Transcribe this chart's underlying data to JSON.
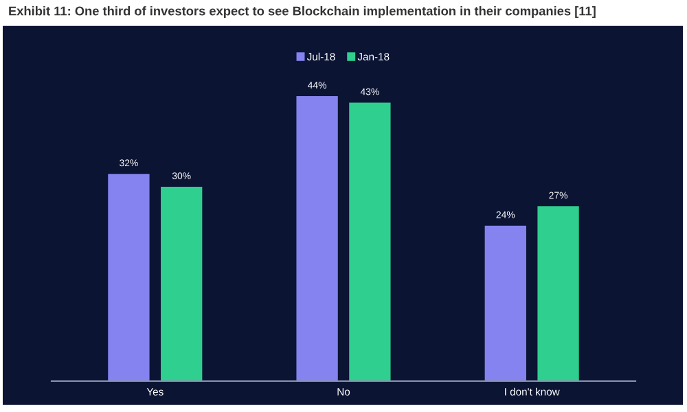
{
  "chart_data": {
    "type": "bar",
    "title": "Exhibit 11: One third of investors expect to see Blockchain implementation in their companies [11]",
    "categories": [
      "Yes",
      "No",
      "I don't know"
    ],
    "series": [
      {
        "name": "Jul-18",
        "color": "#8583f0",
        "values": [
          32,
          44,
          24
        ],
        "value_labels": [
          "32%",
          "44%",
          "24%"
        ]
      },
      {
        "name": "Jan-18",
        "color": "#2fcf8f",
        "values": [
          30,
          43,
          27
        ],
        "value_labels": [
          "30%",
          "43%",
          "27%"
        ]
      }
    ],
    "legend": "top",
    "grid": false
  }
}
